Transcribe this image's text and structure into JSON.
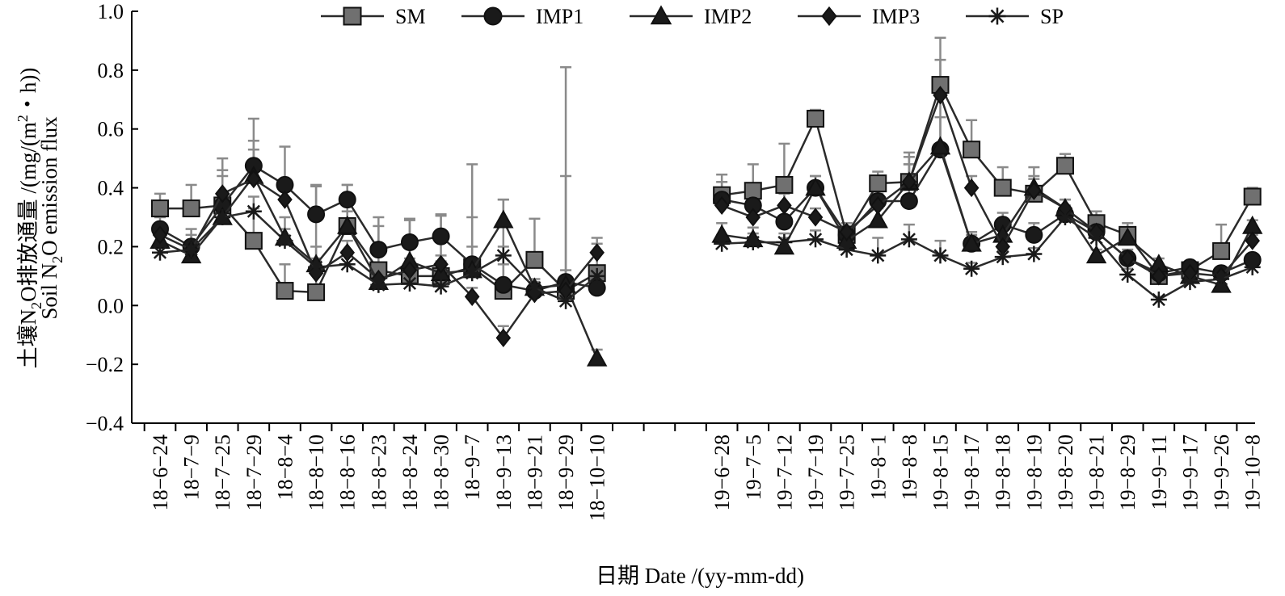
{
  "chart_data": {
    "type": "line",
    "xlabel": "日期 Date /(yy-mm-dd)",
    "ylabel_line1_prefix": "土壤N",
    "ylabel_line1_sub": "2",
    "ylabel_line1_mid": "O排放通量 /(mg/(m",
    "ylabel_line1_sup": "2",
    "ylabel_line1_suffix": "・h))",
    "ylabel_line2_prefix": "Soil N",
    "ylabel_line2_sub": "2",
    "ylabel_line2_suffix": "O emission flux",
    "ylim": [
      -0.4,
      1.0
    ],
    "yticks": [
      "1.0",
      "0.8",
      "0.6",
      "0.4",
      "0.2",
      "0.0",
      "−0.2",
      "−0.4"
    ],
    "ytick_values": [
      1.0,
      0.8,
      0.6,
      0.4,
      0.2,
      0.0,
      -0.2,
      -0.4
    ],
    "legend_position": "top",
    "grid": false,
    "categories": [
      "18−6−24",
      "18−7−9",
      "18−7−25",
      "18−7−29",
      "18−8−4",
      "18−8−10",
      "18−8−16",
      "18−8−23",
      "18−8−24",
      "18−8−30",
      "18−9−7",
      "18−9−13",
      "18−9−21",
      "18−9−29",
      "18−10−10",
      "",
      "",
      "",
      "19−6−28",
      "19−7−5",
      "19−7−12",
      "19−7−19",
      "19−7−25",
      "19−8−1",
      "19−8−8",
      "19−8−15",
      "19−8−17",
      "19−8−18",
      "19−8−19",
      "19−8−20",
      "19−8−21",
      "19−8−29",
      "19−9−11",
      "19−9−17",
      "19−9−26",
      "19−10−8"
    ],
    "series": [
      {
        "name": "SM",
        "marker": "square",
        "values": [
          0.33,
          0.33,
          0.34,
          0.22,
          0.05,
          0.045,
          0.27,
          0.12,
          0.1,
          0.1,
          0.13,
          0.05,
          0.155,
          0.05,
          0.11,
          null,
          null,
          null,
          0.375,
          0.39,
          0.41,
          0.635,
          0.24,
          0.415,
          0.42,
          0.75,
          0.53,
          0.4,
          0.38,
          0.475,
          0.28,
          0.24,
          0.1,
          0.12,
          0.185,
          0.37
        ],
        "errors": [
          0.05,
          0.08,
          0.16,
          0.11,
          0.09,
          0.36,
          0.14,
          0.18,
          0.19,
          0.21,
          0.35,
          0.31,
          0.14,
          0.76,
          0.12,
          null,
          null,
          null,
          0.07,
          0.09,
          0.14,
          0.03,
          0.04,
          0.04,
          0.1,
          0.16,
          0.1,
          0.07,
          0.09,
          0.04,
          0.04,
          0.04,
          0.03,
          0.03,
          0.09,
          0.03
        ]
      },
      {
        "name": "IMP1",
        "marker": "circle",
        "values": [
          0.26,
          0.2,
          0.34,
          0.475,
          0.41,
          0.31,
          0.36,
          0.19,
          0.215,
          0.235,
          0.14,
          0.07,
          0.05,
          0.08,
          0.06,
          null,
          null,
          null,
          0.36,
          0.34,
          0.285,
          0.4,
          0.24,
          0.355,
          0.355,
          0.53,
          0.21,
          0.275,
          0.24,
          0.31,
          0.25,
          0.16,
          0.11,
          0.13,
          0.11,
          0.155
        ],
        "errors": [
          0.04,
          0.06,
          0.1,
          0.16,
          0.13,
          0.1,
          0.05,
          0.08,
          0.08,
          0.07,
          0.16,
          0.07,
          0.03,
          0.36,
          0.04,
          null,
          null,
          null,
          0.06,
          0.07,
          0.06,
          0.04,
          0.03,
          0.05,
          0.15,
          0.19,
          0.04,
          0.04,
          0.04,
          0.03,
          0.03,
          0.03,
          0.02,
          0.02,
          0.02,
          0.02
        ]
      },
      {
        "name": "IMP2",
        "marker": "triangle",
        "values": [
          0.22,
          0.17,
          0.3,
          0.44,
          0.23,
          0.14,
          0.27,
          0.08,
          0.15,
          0.11,
          0.12,
          0.29,
          0.06,
          0.07,
          -0.18,
          null,
          null,
          null,
          0.24,
          0.225,
          0.2,
          0.4,
          0.22,
          0.29,
          0.42,
          0.54,
          0.21,
          0.24,
          0.4,
          0.33,
          0.17,
          0.23,
          0.14,
          0.1,
          0.07,
          0.27
        ],
        "errors": [
          0.03,
          0.04,
          0.08,
          0.12,
          0.07,
          0.06,
          0.05,
          0.04,
          0.05,
          0.04,
          0.08,
          0.07,
          0.03,
          0.05,
          0.03,
          null,
          null,
          null,
          0.04,
          0.04,
          0.03,
          0.04,
          0.03,
          0.04,
          0.06,
          0.1,
          0.03,
          0.03,
          0.04,
          0.03,
          0.02,
          0.02,
          0.02,
          0.02,
          0.02,
          0.02
        ]
      },
      {
        "name": "IMP3",
        "marker": "diamond",
        "values": [
          0.24,
          0.19,
          0.38,
          0.43,
          0.36,
          0.11,
          0.18,
          0.09,
          0.12,
          0.14,
          0.03,
          -0.11,
          0.04,
          0.05,
          0.18,
          null,
          null,
          null,
          0.34,
          0.3,
          0.34,
          0.3,
          0.25,
          0.34,
          0.42,
          0.715,
          0.4,
          0.2,
          0.39,
          0.33,
          0.25,
          0.16,
          0.1,
          0.11,
          0.1,
          0.22
        ],
        "errors": [
          0.03,
          0.05,
          0.08,
          0.1,
          0.06,
          0.04,
          0.04,
          0.03,
          0.04,
          0.03,
          0.03,
          0.04,
          0.02,
          0.04,
          0.03,
          null,
          null,
          null,
          0.04,
          0.04,
          0.04,
          0.03,
          0.03,
          0.04,
          0.06,
          0.12,
          0.04,
          0.03,
          0.04,
          0.03,
          0.02,
          0.02,
          0.02,
          0.02,
          0.02,
          0.02
        ]
      },
      {
        "name": "SP",
        "marker": "star",
        "values": [
          0.18,
          0.19,
          0.3,
          0.32,
          0.22,
          0.13,
          0.14,
          0.07,
          0.075,
          0.065,
          0.11,
          0.17,
          0.06,
          0.015,
          0.1,
          null,
          null,
          null,
          0.21,
          0.215,
          0.215,
          0.225,
          0.19,
          0.17,
          0.225,
          0.17,
          0.125,
          0.165,
          0.175,
          0.3,
          0.23,
          0.105,
          0.02,
          0.08,
          0.09,
          0.13
        ],
        "errors": [
          0.02,
          0.03,
          0.04,
          0.05,
          0.04,
          0.03,
          0.03,
          0.02,
          0.02,
          0.02,
          0.03,
          0.03,
          0.02,
          0.02,
          0.02,
          null,
          null,
          null,
          0.03,
          0.03,
          0.03,
          0.03,
          0.02,
          0.06,
          0.05,
          0.05,
          0.02,
          0.02,
          0.02,
          0.03,
          0.02,
          0.02,
          0.01,
          0.01,
          0.01,
          0.01
        ]
      }
    ]
  }
}
